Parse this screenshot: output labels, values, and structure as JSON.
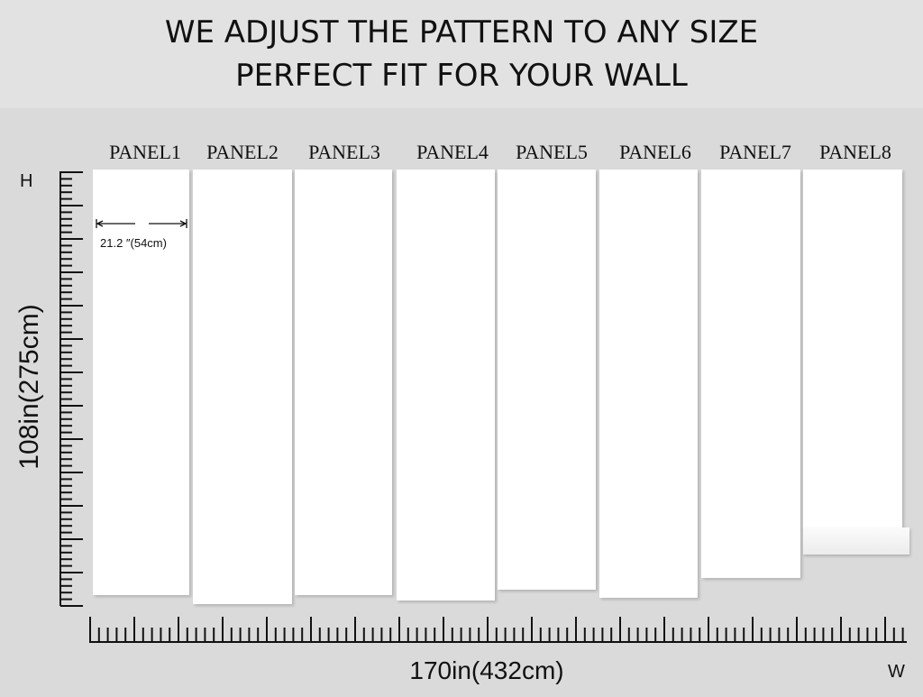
{
  "headline": [
    "WE ADJUST THE PATTERN TO ANY SIZE",
    "PERFECT FIT FOR YOUR WALL"
  ],
  "panels": [
    "PANEL1",
    "PANEL2",
    "PANEL3",
    "PANEL4",
    "PANEL5",
    "PANEL6",
    "PANEL7",
    "PANEL8"
  ],
  "panel_width_label": "21.2  ″(54cm)",
  "height_axis": {
    "letter": "H",
    "label": "108in(275cm)"
  },
  "width_axis": {
    "letter": "W",
    "label": "170in(432cm)"
  }
}
